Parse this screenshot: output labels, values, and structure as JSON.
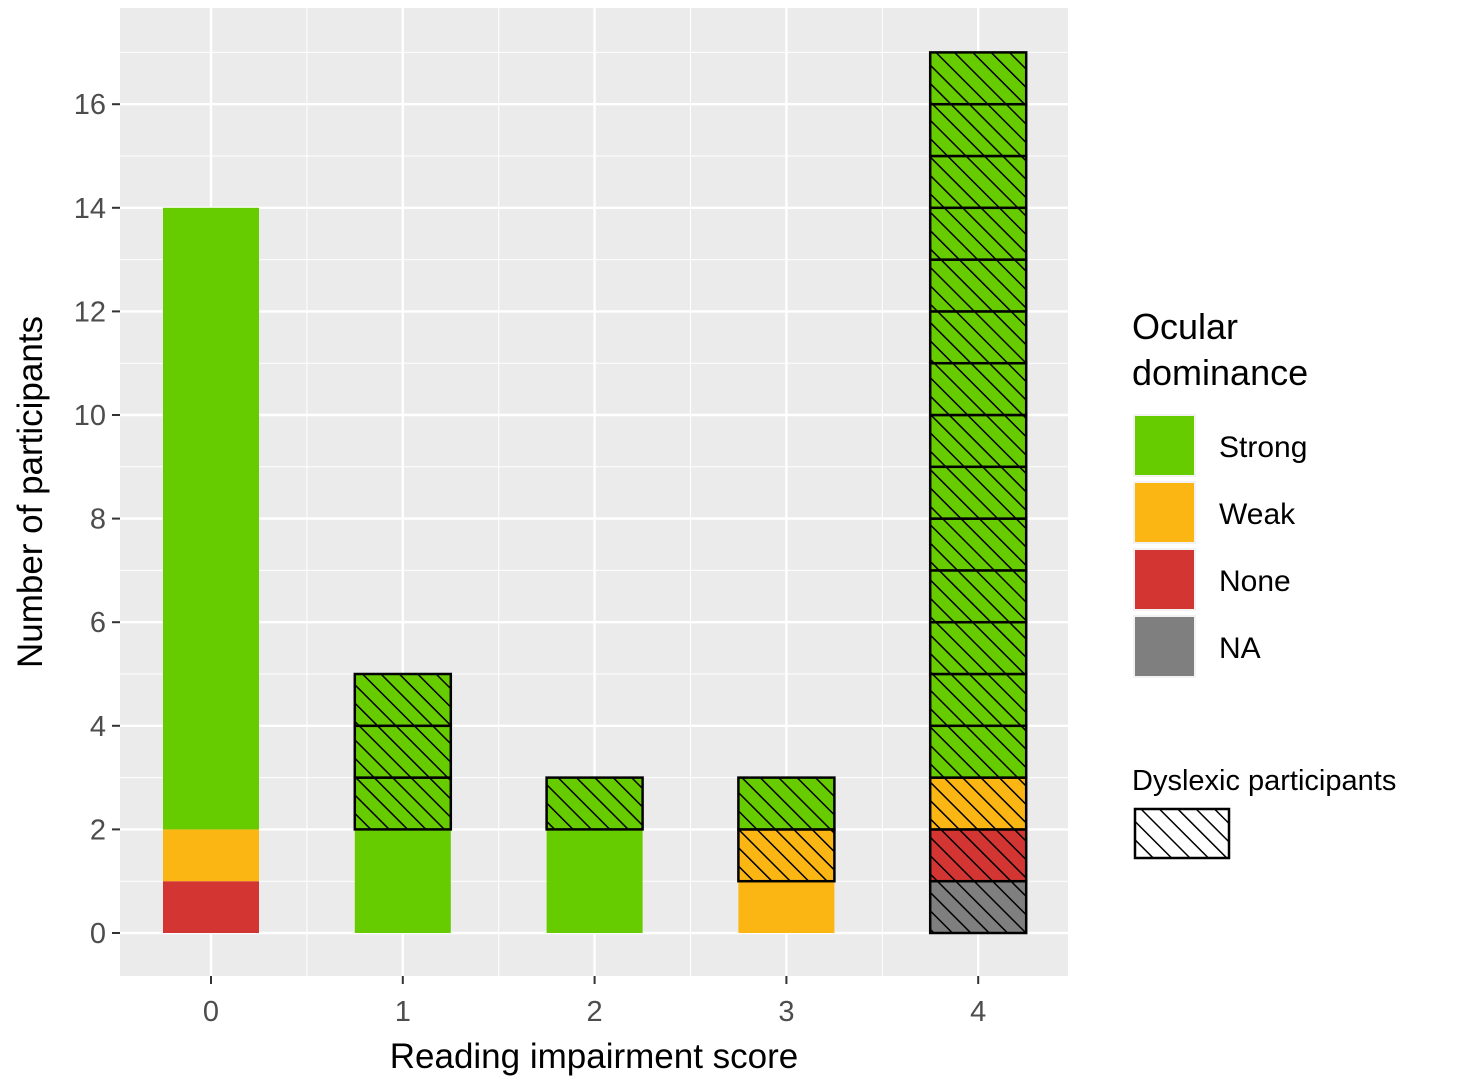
{
  "chart_data": {
    "type": "bar",
    "subtype": "stacked",
    "title": "",
    "xlabel": "Reading impairment score",
    "ylabel": "Number of participants",
    "categories": [
      "0",
      "1",
      "2",
      "3",
      "4"
    ],
    "ylim": [
      0,
      17.5
    ],
    "yticks": [
      0,
      2,
      4,
      6,
      8,
      10,
      12,
      14,
      16
    ],
    "grid": true,
    "legend_placement": "right",
    "stack_order": [
      "NA",
      "None",
      "Weak",
      "Strong"
    ],
    "series": [
      {
        "name": "Strong",
        "dyslexic": false,
        "values": [
          12,
          2,
          2,
          0,
          0
        ]
      },
      {
        "name": "Strong",
        "dyslexic": true,
        "values": [
          0,
          3,
          1,
          1,
          14
        ]
      },
      {
        "name": "Weak",
        "dyslexic": false,
        "values": [
          1,
          0,
          0,
          1,
          0
        ]
      },
      {
        "name": "Weak",
        "dyslexic": true,
        "values": [
          0,
          0,
          0,
          1,
          1
        ]
      },
      {
        "name": "None",
        "dyslexic": false,
        "values": [
          1,
          0,
          0,
          0,
          0
        ]
      },
      {
        "name": "None",
        "dyslexic": true,
        "values": [
          0,
          0,
          0,
          0,
          1
        ]
      },
      {
        "name": "NA",
        "dyslexic": true,
        "values": [
          0,
          0,
          0,
          0,
          1
        ]
      }
    ],
    "legend": {
      "fill_title": "Ocular\ndominance",
      "fill_entries": [
        {
          "name": "Strong",
          "color": "#66cc00"
        },
        {
          "name": "Weak",
          "color": "#fbb614"
        },
        {
          "name": "None",
          "color": "#d33632"
        },
        {
          "name": "NA",
          "color": "#7f7f7f"
        }
      ],
      "pattern_title": "Dyslexic participants"
    },
    "colors": {
      "Strong": "#66cc00",
      "Weak": "#fbb614",
      "None": "#d33632",
      "NA": "#7f7f7f",
      "panel_background": "#ebebeb",
      "grid": "#ffffff"
    }
  }
}
